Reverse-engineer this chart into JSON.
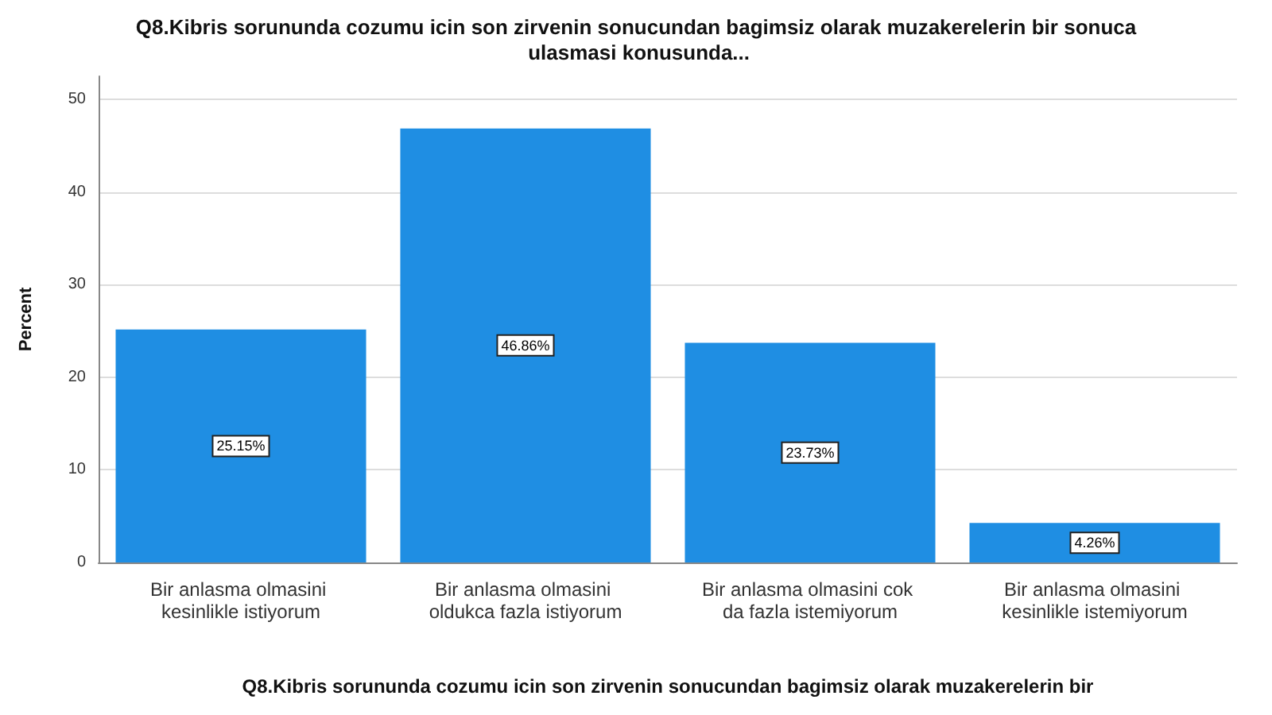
{
  "chart_data": {
    "type": "bar",
    "title": "Q8.Kibris sorununda cozumu icin son zirvenin sonucundan bagimsiz olarak muzakerelerin bir sonuca ulasmasi konusunda...",
    "xlabel": "Q8.Kibris sorununda cozumu icin son zirvenin sonucundan bagimsiz olarak muzakerelerin bir",
    "ylabel": "Percent",
    "categories": [
      "Bir anlasma olmasini kesinlikle istiyorum",
      "Bir anlasma olmasini oldukca fazla istiyorum",
      "Bir anlasma olmasini cok da fazla istemiyorum",
      "Bir anlasma olmasini kesinlikle istemiyorum"
    ],
    "values": [
      25.15,
      46.86,
      23.73,
      4.26
    ],
    "value_labels": [
      "25.15%",
      "46.86%",
      "23.73%",
      "4.26%"
    ],
    "color": "#1f8ee3",
    "ylim": [
      0,
      52.5
    ],
    "yticks": [
      0,
      10,
      20,
      30,
      40,
      50
    ],
    "grid": "y"
  }
}
